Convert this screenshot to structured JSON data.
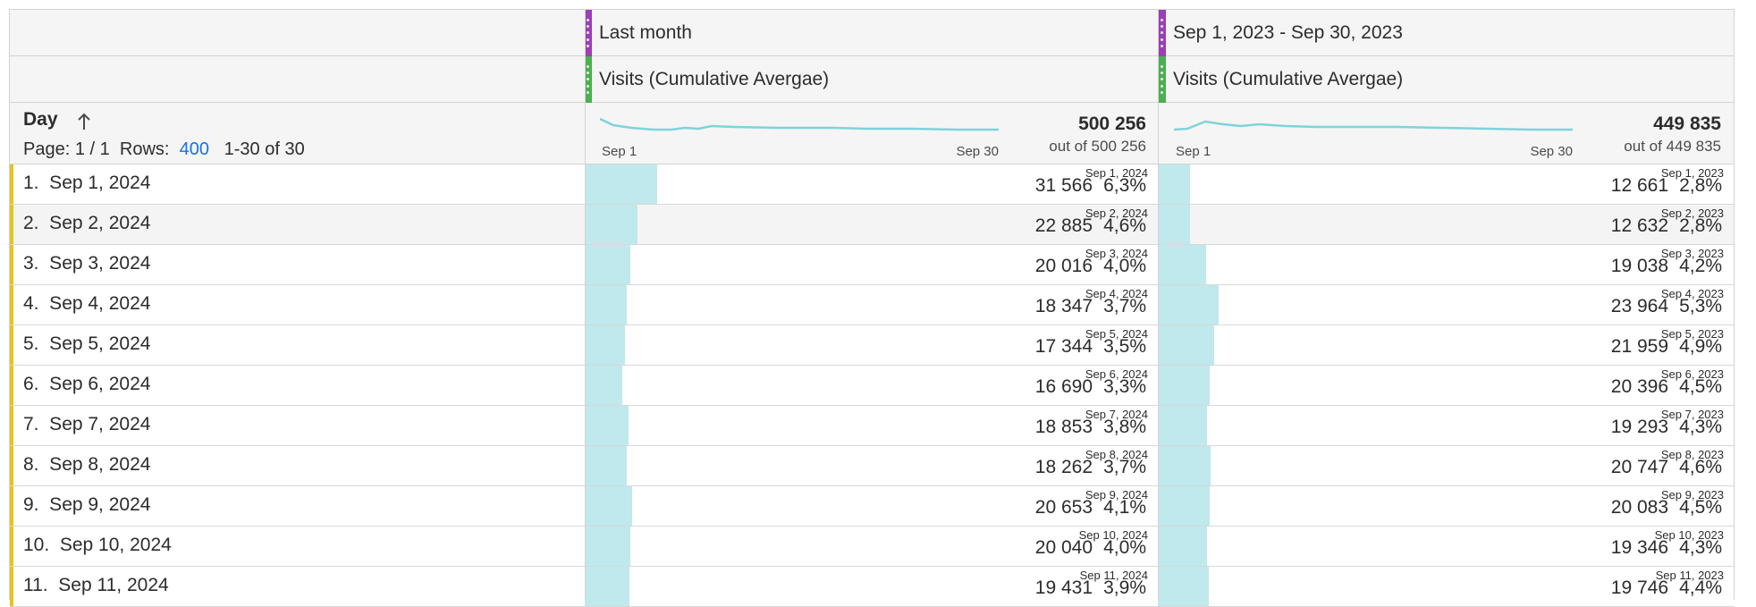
{
  "columns": [
    {
      "segment": "Last month",
      "metric": "Visits (Cumulative Avergae)",
      "spark_start": "Sep 1",
      "spark_end": "Sep 30",
      "total": "500 256",
      "total_sub": "out of 500 256",
      "segment_color": "#9b3fb5",
      "metric_color": "#4caf50"
    },
    {
      "segment": "Sep 1, 2023 - Sep 30, 2023",
      "metric": "Visits (Cumulative Avergae)",
      "spark_start": "Sep 1",
      "spark_end": "Sep 30",
      "total": "449 835",
      "total_sub": "out of 449 835",
      "segment_color": "#9b3fb5",
      "metric_color": "#4caf50"
    }
  ],
  "dimension": {
    "title": "Day",
    "sort_icon": "arrow-up-icon"
  },
  "pagination": {
    "page_label": "Page: 1 / 1",
    "rows_label": "Rows:",
    "rows_value": "400",
    "range": "1-30 of 30"
  },
  "rows": [
    {
      "label": "1.  Sep 1, 2024",
      "c1": {
        "value": "31 566",
        "pct": "6,3%",
        "date": "Sep 1, 2024",
        "share": 0.063
      },
      "c2": {
        "value": "12 661",
        "pct": "2,8%",
        "date": "Sep 1, 2023",
        "share": 0.028
      }
    },
    {
      "label": "2.  Sep 2, 2024",
      "c1": {
        "value": "22 885",
        "pct": "4,6%",
        "date": "Sep 2, 2024",
        "share": 0.046
      },
      "c2": {
        "value": "12 632",
        "pct": "2,8%",
        "date": "Sep 2, 2023",
        "share": 0.028
      }
    },
    {
      "label": "3.  Sep 3, 2024",
      "c1": {
        "value": "20 016",
        "pct": "4,0%",
        "date": "Sep 3, 2024",
        "share": 0.04
      },
      "c2": {
        "value": "19 038",
        "pct": "4,2%",
        "date": "Sep 3, 2023",
        "share": 0.042
      }
    },
    {
      "label": "4.  Sep 4, 2024",
      "c1": {
        "value": "18 347",
        "pct": "3,7%",
        "date": "Sep 4, 2024",
        "share": 0.037
      },
      "c2": {
        "value": "23 964",
        "pct": "5,3%",
        "date": "Sep 4, 2023",
        "share": 0.053
      }
    },
    {
      "label": "5.  Sep 5, 2024",
      "c1": {
        "value": "17 344",
        "pct": "3,5%",
        "date": "Sep 5, 2024",
        "share": 0.035
      },
      "c2": {
        "value": "21 959",
        "pct": "4,9%",
        "date": "Sep 5, 2023",
        "share": 0.049
      }
    },
    {
      "label": "6.  Sep 6, 2024",
      "c1": {
        "value": "16 690",
        "pct": "3,3%",
        "date": "Sep 6, 2024",
        "share": 0.033
      },
      "c2": {
        "value": "20 396",
        "pct": "4,5%",
        "date": "Sep 6, 2023",
        "share": 0.045
      }
    },
    {
      "label": "7.  Sep 7, 2024",
      "c1": {
        "value": "18 853",
        "pct": "3,8%",
        "date": "Sep 7, 2024",
        "share": 0.038
      },
      "c2": {
        "value": "19 293",
        "pct": "4,3%",
        "date": "Sep 7, 2023",
        "share": 0.043
      }
    },
    {
      "label": "8.  Sep 8, 2024",
      "c1": {
        "value": "18 262",
        "pct": "3,7%",
        "date": "Sep 8, 2024",
        "share": 0.037
      },
      "c2": {
        "value": "20 747",
        "pct": "4,6%",
        "date": "Sep 8, 2023",
        "share": 0.046
      }
    },
    {
      "label": "9.  Sep 9, 2024",
      "c1": {
        "value": "20 653",
        "pct": "4,1%",
        "date": "Sep 9, 2024",
        "share": 0.041
      },
      "c2": {
        "value": "20 083",
        "pct": "4,5%",
        "date": "Sep 9, 2023",
        "share": 0.045
      }
    },
    {
      "label": "10.  Sep 10, 2024",
      "c1": {
        "value": "20 040",
        "pct": "4,0%",
        "date": "Sep 10, 2024",
        "share": 0.04
      },
      "c2": {
        "value": "19 346",
        "pct": "4,3%",
        "date": "Sep 10, 2023",
        "share": 0.043
      }
    },
    {
      "label": "11.  Sep 11, 2024",
      "c1": {
        "value": "19 431",
        "pct": "3,9%",
        "date": "Sep 11, 2024",
        "share": 0.039
      },
      "c2": {
        "value": "19 746",
        "pct": "4,4%",
        "date": "Sep 11, 2023",
        "share": 0.044
      }
    }
  ],
  "colors": {
    "bar_fill": "#bfe9ec",
    "sparkline": "#7fd3da",
    "row_marker": "#e8c31a",
    "link": "#1473e6"
  }
}
